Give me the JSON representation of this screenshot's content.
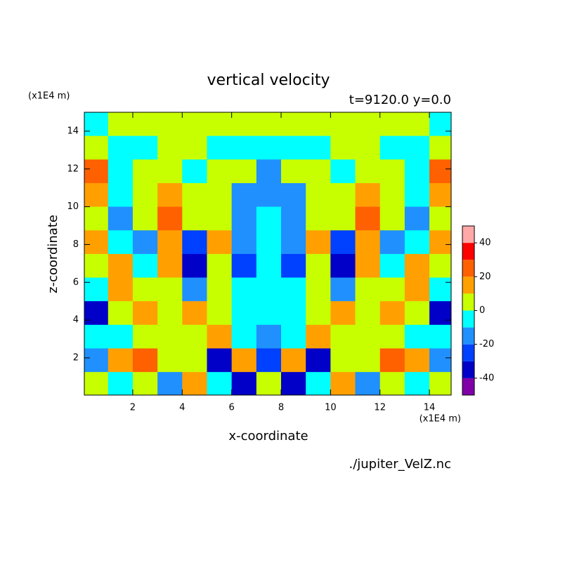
{
  "chart_data": {
    "type": "contour",
    "title": "vertical velocity",
    "subtitle": "t=9120.0 y=0.0",
    "xlabel": "x-coordinate",
    "ylabel": "z-coordinate",
    "x_unit": "(x1E4 m)",
    "y_unit": "(x1E4 m)",
    "source": "./jupiter_VelZ.nc",
    "xlim": [
      0.04,
      14.88
    ],
    "ylim": [
      0.03,
      15.0
    ],
    "xticks": [
      2,
      4,
      6,
      8,
      10,
      12,
      14
    ],
    "yticks": [
      2,
      4,
      6,
      8,
      10,
      12,
      14
    ],
    "x": [
      0.5,
      1.5,
      2.5,
      3.5,
      4.5,
      5.5,
      6.5,
      7.5,
      8.5,
      9.5,
      10.5,
      11.5,
      12.5,
      13.5,
      14.5
    ],
    "y": [
      14.375,
      13.125,
      11.875,
      10.625,
      9.375,
      8.125,
      6.875,
      5.625,
      4.375,
      3.125,
      1.875,
      0.625
    ],
    "z": [
      [
        -5,
        5,
        5,
        5,
        5,
        5,
        5,
        5,
        5,
        5,
        5,
        5,
        5,
        5,
        -5
      ],
      [
        5,
        -5,
        -5,
        5,
        5,
        -5,
        -5,
        -5,
        -5,
        -5,
        5,
        5,
        -5,
        -5,
        5
      ],
      [
        25,
        -5,
        5,
        5,
        -5,
        5,
        5,
        -15,
        5,
        5,
        -5,
        5,
        5,
        -5,
        25
      ],
      [
        15,
        -5,
        5,
        15,
        5,
        5,
        -15,
        -15,
        -15,
        5,
        5,
        15,
        5,
        -5,
        15
      ],
      [
        5,
        -15,
        5,
        25,
        5,
        5,
        -15,
        -5,
        -15,
        5,
        5,
        25,
        5,
        -15,
        5
      ],
      [
        15,
        -5,
        -15,
        15,
        -25,
        15,
        -15,
        -5,
        -15,
        15,
        -25,
        15,
        -15,
        -5,
        15
      ],
      [
        5,
        15,
        -5,
        15,
        -35,
        5,
        -25,
        -5,
        -25,
        5,
        -35,
        15,
        -5,
        15,
        5
      ],
      [
        -5,
        15,
        5,
        5,
        -15,
        5,
        -5,
        -5,
        -5,
        5,
        -15,
        5,
        5,
        15,
        -5
      ],
      [
        -35,
        5,
        15,
        5,
        15,
        5,
        -5,
        -5,
        -5,
        5,
        15,
        5,
        15,
        5,
        -35
      ],
      [
        -5,
        -5,
        5,
        5,
        5,
        15,
        -5,
        -15,
        -5,
        15,
        5,
        5,
        5,
        -5,
        -5
      ],
      [
        -15,
        15,
        25,
        5,
        5,
        -35,
        15,
        -25,
        15,
        -35,
        5,
        5,
        25,
        15,
        -15
      ],
      [
        5,
        -5,
        5,
        -15,
        15,
        -5,
        -35,
        5,
        -35,
        -5,
        15,
        -15,
        5,
        -5,
        5
      ]
    ],
    "levels": [
      -50,
      -40,
      -30,
      -20,
      -10,
      0,
      10,
      20,
      30,
      40,
      50
    ],
    "colors": [
      "#8000a8",
      "#0000c8",
      "#0040ff",
      "#2090ff",
      "#00ffff",
      "#c8ff00",
      "#ffa000",
      "#ff6000",
      "#ff0000",
      "#ffa8a8"
    ],
    "colorbar_ticks": [
      -40,
      -20,
      0,
      20,
      40
    ]
  }
}
